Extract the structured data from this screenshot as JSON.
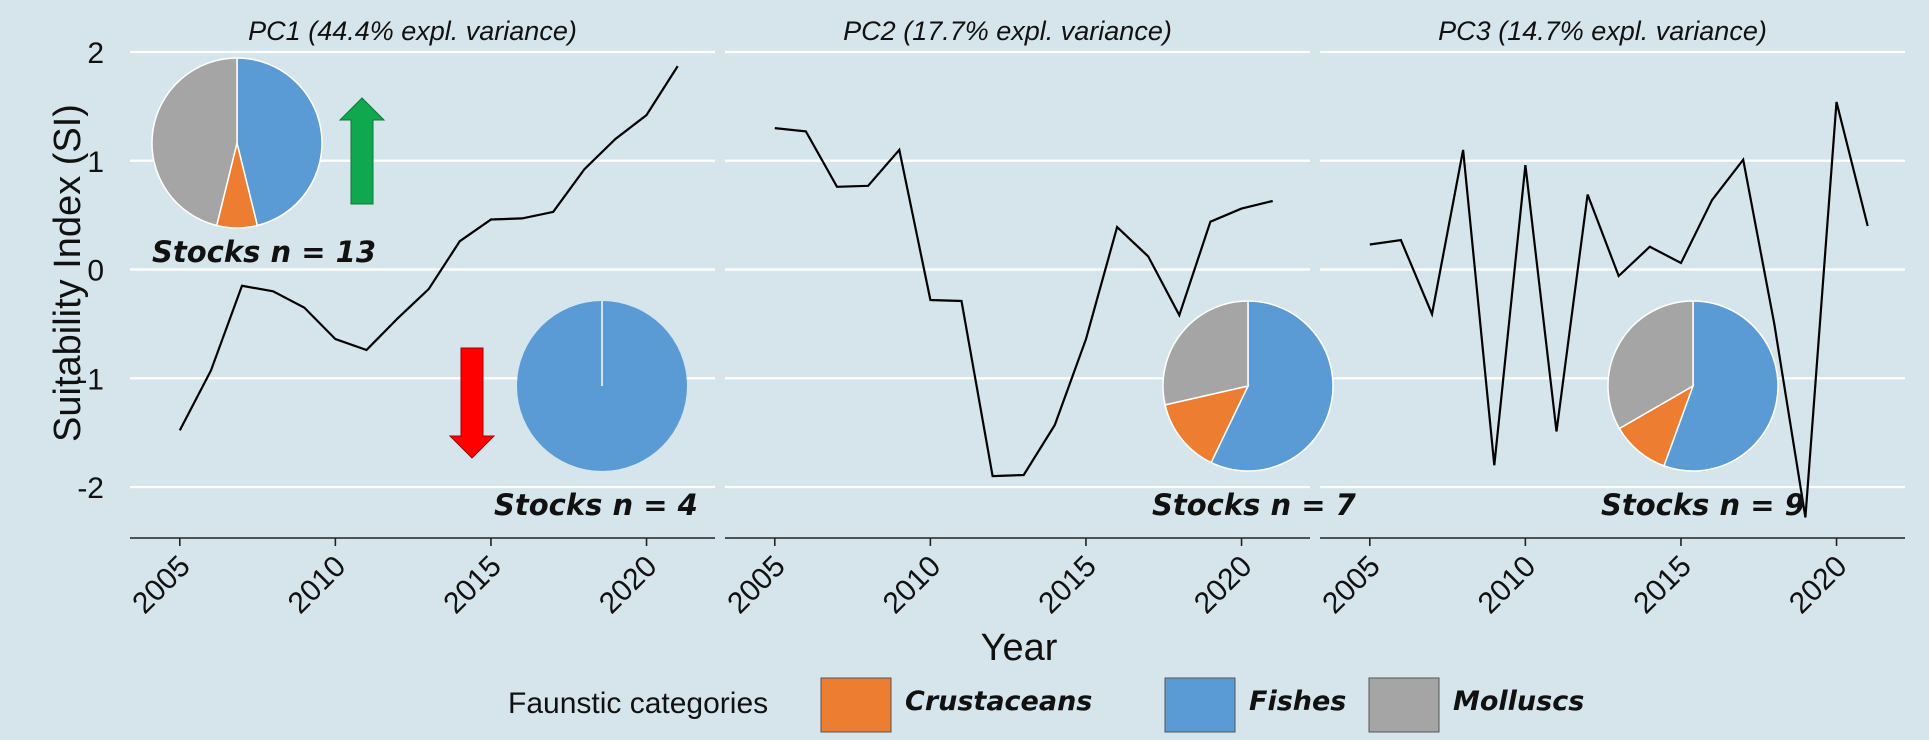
{
  "colors": {
    "background": "#d6e5ec",
    "grid": "#ffffff",
    "line": "#000000",
    "crustaceans": "#ed7d31",
    "fishes": "#5b9bd5",
    "molluscs": "#a5a5a5",
    "arrow_up": "#0fa84e",
    "arrow_down": "#ff0000"
  },
  "chart_data": {
    "type": "line",
    "ylabel": "Suitability Index (SI)",
    "xlabel": "Year",
    "ylim": [
      -2.5,
      2.1
    ],
    "yticks": [
      -2,
      -1,
      0,
      1,
      2
    ],
    "xlim": [
      2003.4,
      2022.2
    ],
    "xticks": [
      2005,
      2010,
      2015,
      2020
    ],
    "grid": true,
    "legend": {
      "title": "Faunstic categories",
      "position": "bottom",
      "entries": [
        {
          "label": "Crustaceans",
          "color": "#ed7d31"
        },
        {
          "label": "Fishes",
          "color": "#5b9bd5"
        },
        {
          "label": "Molluscs",
          "color": "#a5a5a5"
        }
      ]
    },
    "panels": [
      {
        "title": "PC1 (44.4% expl. variance)",
        "x": [
          2005,
          2006,
          2007,
          2008,
          2009,
          2010,
          2011,
          2012,
          2013,
          2014,
          2015,
          2016,
          2017,
          2018,
          2019,
          2020,
          2021
        ],
        "y": [
          -1.48,
          -0.93,
          -0.15,
          -0.2,
          -0.35,
          -0.64,
          -0.74,
          -0.45,
          -0.18,
          0.26,
          0.46,
          0.47,
          0.53,
          0.92,
          1.2,
          1.42,
          1.87
        ],
        "groups": [
          {
            "stocks_label": "Stocks n = 13",
            "arrow": "up",
            "pie": [
              {
                "category": "Fishes",
                "value": 6,
                "color": "#5b9bd5"
              },
              {
                "category": "Crustaceans",
                "value": 1,
                "color": "#ed7d31"
              },
              {
                "category": "Molluscs",
                "value": 6,
                "color": "#a5a5a5"
              }
            ]
          },
          {
            "stocks_label": "Stocks n = 4",
            "arrow": "down",
            "pie": [
              {
                "category": "Fishes",
                "value": 4,
                "color": "#5b9bd5"
              }
            ]
          }
        ]
      },
      {
        "title": "PC2 (17.7% expl. variance)",
        "x": [
          2005,
          2006,
          2007,
          2008,
          2009,
          2010,
          2011,
          2012,
          2013,
          2014,
          2015,
          2016,
          2017,
          2018,
          2019,
          2020,
          2021
        ],
        "y": [
          1.3,
          1.27,
          0.76,
          0.77,
          1.1,
          -0.28,
          -0.29,
          -1.9,
          -1.89,
          -1.43,
          -0.64,
          0.39,
          0.12,
          -0.42,
          0.44,
          0.56,
          0.63
        ],
        "groups": [
          {
            "stocks_label": "Stocks n = 7",
            "arrow": "",
            "pie": [
              {
                "category": "Fishes",
                "value": 4,
                "color": "#5b9bd5"
              },
              {
                "category": "Crustaceans",
                "value": 1,
                "color": "#ed7d31"
              },
              {
                "category": "Molluscs",
                "value": 2,
                "color": "#a5a5a5"
              }
            ]
          }
        ]
      },
      {
        "title": "PC3 (14.7% expl. variance)",
        "x": [
          2005,
          2006,
          2007,
          2008,
          2009,
          2010,
          2011,
          2012,
          2013,
          2014,
          2015,
          2016,
          2017,
          2018,
          2019,
          2020,
          2021
        ],
        "y": [
          0.23,
          0.27,
          -0.41,
          1.1,
          -1.8,
          0.96,
          -1.49,
          0.69,
          -0.06,
          0.21,
          0.06,
          0.64,
          1.01,
          -0.5,
          -2.28,
          1.54,
          0.4
        ],
        "groups": [
          {
            "stocks_label": "Stocks n = 9",
            "arrow": "",
            "pie": [
              {
                "category": "Fishes",
                "value": 5,
                "color": "#5b9bd5"
              },
              {
                "category": "Crustaceans",
                "value": 1,
                "color": "#ed7d31"
              },
              {
                "category": "Molluscs",
                "value": 3,
                "color": "#a5a5a5"
              }
            ]
          }
        ]
      }
    ]
  }
}
